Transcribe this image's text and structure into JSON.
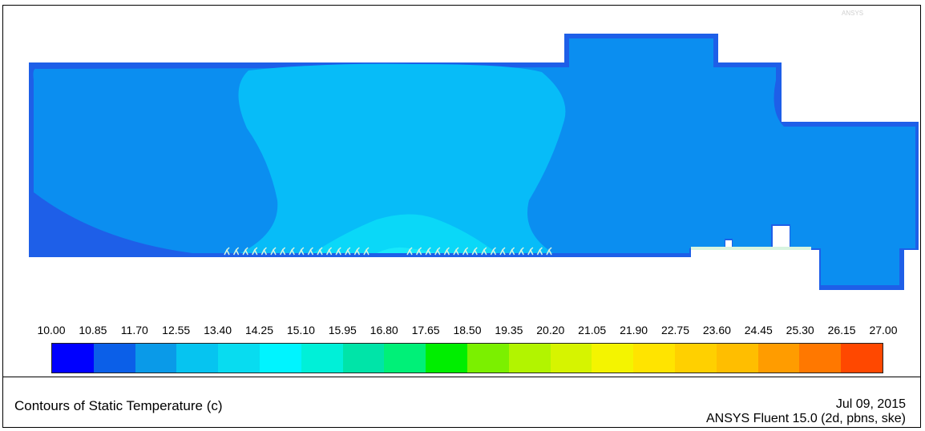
{
  "title": "Contours of Static Temperature (c)",
  "date": "Jul 09, 2015",
  "solver": "ANSYS Fluent 15.0 (2d, pbns, ske)",
  "watermark": "ANSYS",
  "legend": {
    "labels": [
      "10.00",
      "10.85",
      "11.70",
      "12.55",
      "13.40",
      "14.25",
      "15.10",
      "15.95",
      "16.80",
      "17.65",
      "18.50",
      "19.35",
      "20.20",
      "21.05",
      "21.90",
      "22.75",
      "23.60",
      "24.45",
      "25.30",
      "26.15",
      "27.00"
    ],
    "colors": [
      "#0000ff",
      "#0b5fe8",
      "#0a9ae8",
      "#06c4f0",
      "#08dcf0",
      "#00f4ff",
      "#00f0d8",
      "#00e4a8",
      "#00f078",
      "#00ee00",
      "#7bf000",
      "#b2f400",
      "#d6f400",
      "#f4f400",
      "#ffe400",
      "#ffd000",
      "#ffbe00",
      "#ff9c00",
      "#ff7800",
      "#ff4800",
      "#ff0000"
    ]
  },
  "field_colors": {
    "wall": "#1e5fe8",
    "main": "#0b8ef0",
    "middle": "#07bcf8",
    "plume": "#0ad8f8",
    "core": "#18e8fa",
    "vent": "#d8f4e0"
  }
}
